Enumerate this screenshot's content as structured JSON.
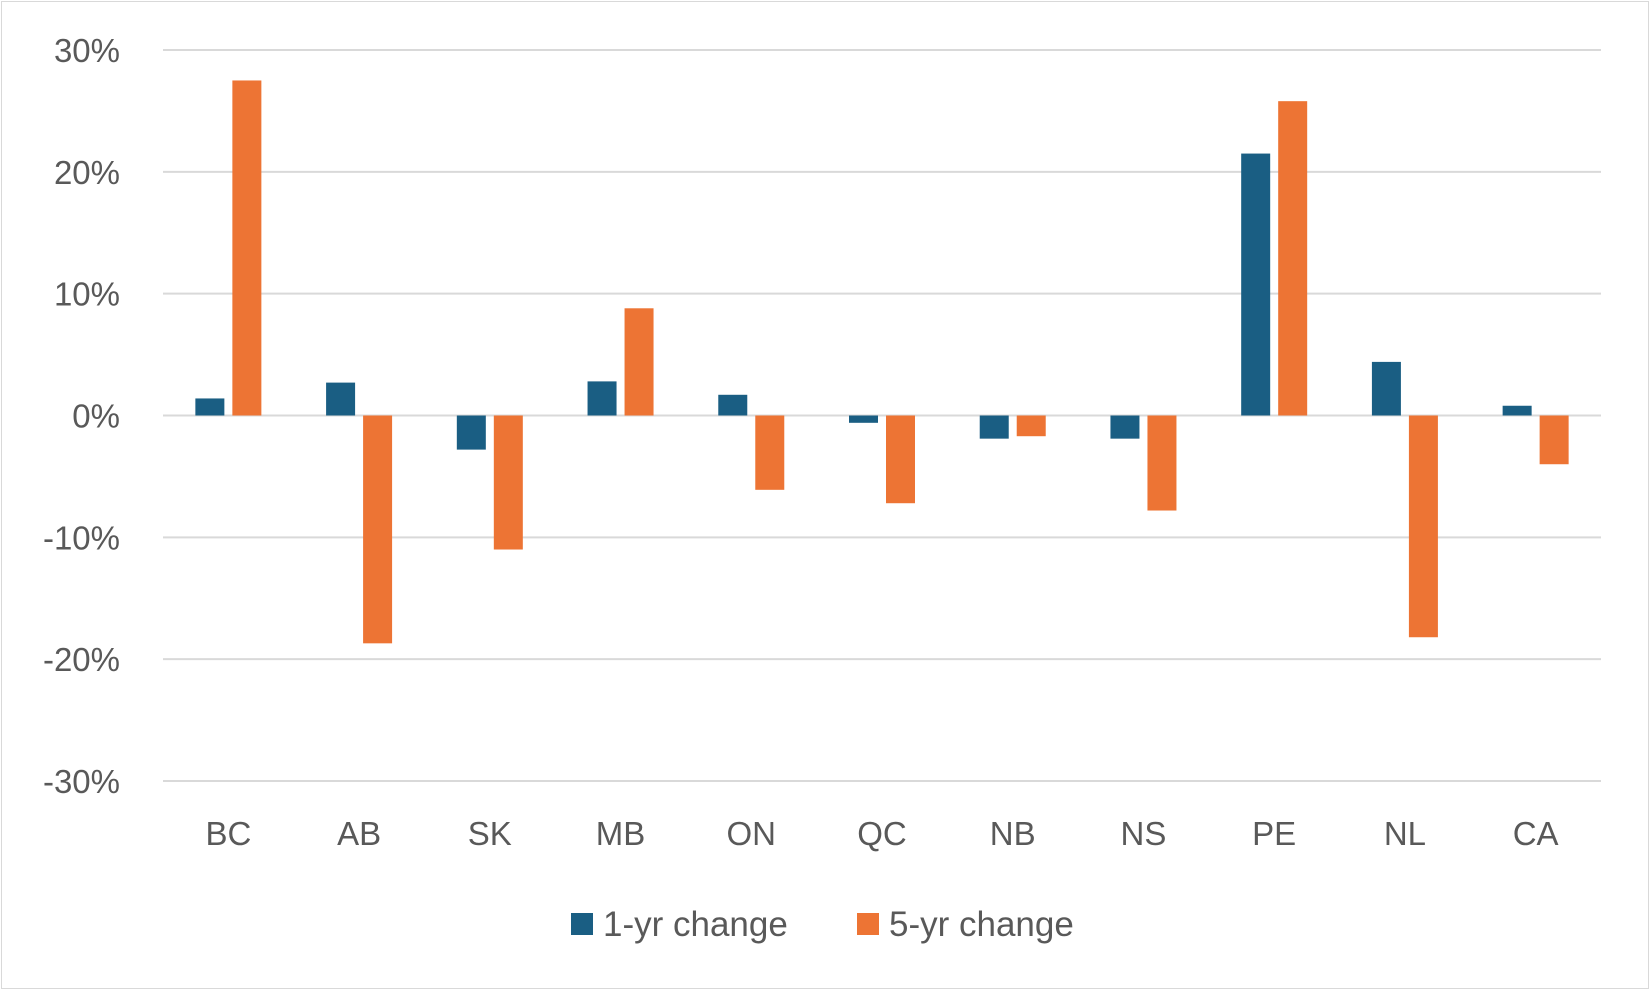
{
  "chart_data": {
    "type": "bar",
    "categories": [
      "BC",
      "AB",
      "SK",
      "MB",
      "ON",
      "QC",
      "NB",
      "NS",
      "PE",
      "NL",
      "CA"
    ],
    "series": [
      {
        "name": "1-yr change",
        "color": "#1a5e83",
        "values": [
          1.4,
          2.7,
          -2.8,
          2.8,
          1.7,
          -0.6,
          -1.9,
          -1.9,
          21.5,
          4.4,
          0.8
        ]
      },
      {
        "name": "5-yr change",
        "color": "#ed7434",
        "values": [
          27.5,
          -18.7,
          -11.0,
          8.8,
          -6.1,
          -7.2,
          -1.7,
          -7.8,
          25.8,
          -18.2,
          -4.0
        ]
      }
    ],
    "y_ticks": [
      30,
      20,
      10,
      0,
      -10,
      -20,
      -30
    ],
    "y_tick_labels": [
      "30%",
      "20%",
      "10%",
      "0%",
      "-10%",
      "-20%",
      "-30%"
    ],
    "ylim": [
      -30,
      30
    ],
    "title": "",
    "xlabel": "",
    "ylabel": "",
    "grid": true,
    "legend_position": "bottom"
  }
}
